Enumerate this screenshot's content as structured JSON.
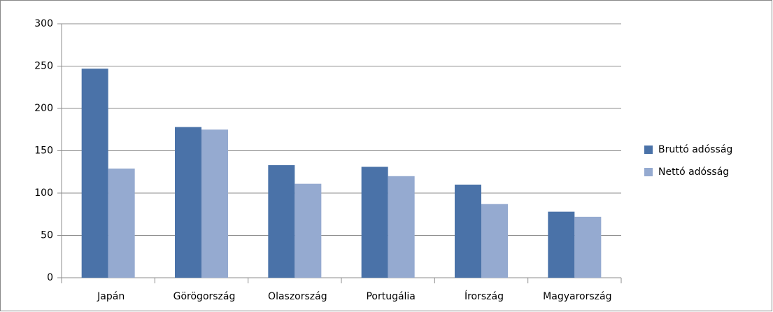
{
  "chart_data": {
    "type": "bar",
    "categories": [
      "Japán",
      "Görögország",
      "Olaszország",
      "Portugália",
      "Írország",
      "Magyarország"
    ],
    "series": [
      {
        "name": "Bruttó adósság",
        "color": "#4a72a8",
        "values": [
          247,
          178,
          133,
          131,
          110,
          78
        ]
      },
      {
        "name": "Nettó adósság",
        "color": "#95aad0",
        "values": [
          129,
          175,
          111,
          120,
          87,
          72
        ]
      }
    ],
    "ylim": [
      0,
      300
    ],
    "yticks": [
      0,
      50,
      100,
      150,
      200,
      250,
      300
    ],
    "grid": true,
    "legend": "right"
  }
}
